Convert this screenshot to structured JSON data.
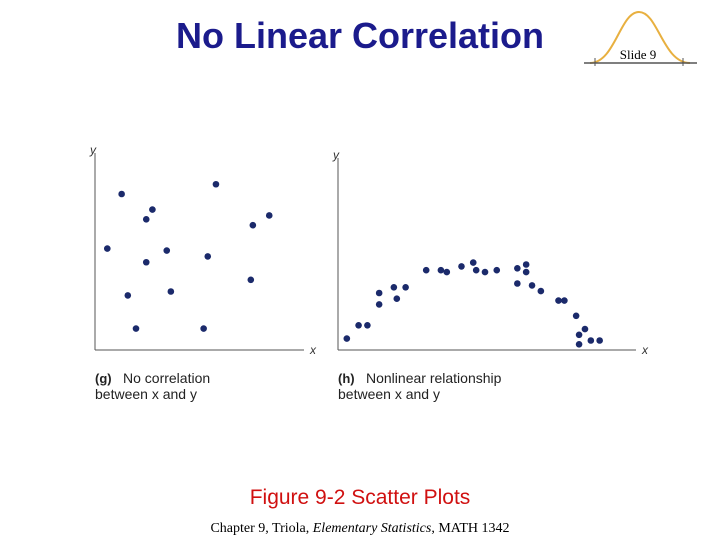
{
  "slide": {
    "title": "No Linear Correlation",
    "slide_number": "Slide 9",
    "figure_caption": "Figure 9-2   Scatter Plots",
    "footer": [
      "Chapter 9, Triola, ",
      "Elementary Statistics",
      ", MATH 1342"
    ]
  },
  "chart_data": [
    {
      "type": "scatter",
      "caption_label": "(g)",
      "caption_lines": [
        "No correlation",
        "between x and y"
      ],
      "xlabel": "x",
      "ylabel": "y",
      "color": "#1b2a6b",
      "xlim": [
        0,
        10
      ],
      "ylim": [
        0,
        10
      ],
      "x": [
        1.3,
        5.9,
        2.8,
        2.5,
        8.5,
        7.7,
        0.6,
        3.5,
        2.5,
        5.5,
        1.6,
        3.7,
        7.6,
        2.0,
        5.3
      ],
      "values": [
        8.0,
        8.5,
        7.2,
        6.7,
        6.9,
        6.4,
        5.2,
        5.1,
        4.5,
        4.8,
        2.8,
        3.0,
        3.6,
        1.1,
        1.1
      ]
    },
    {
      "type": "scatter",
      "caption_label": "(h)",
      "caption_lines": [
        "Nonlinear relationship",
        "between x and y"
      ],
      "xlabel": "x",
      "ylabel": "y",
      "color": "#1b2a6b",
      "xlim": [
        0,
        10
      ],
      "ylim": [
        0,
        10
      ],
      "x": [
        0.3,
        0.7,
        1.0,
        1.4,
        1.4,
        1.9,
        2.0,
        2.3,
        3.0,
        3.5,
        3.7,
        4.2,
        4.6,
        4.7,
        5.0,
        5.4,
        6.1,
        6.4,
        6.4,
        6.1,
        6.6,
        6.9,
        7.5,
        7.7,
        8.1,
        8.2,
        8.4,
        8.6,
        8.2,
        8.9
      ],
      "values": [
        0.6,
        1.3,
        1.3,
        3.0,
        2.4,
        3.3,
        2.7,
        3.3,
        4.2,
        4.2,
        4.1,
        4.4,
        4.6,
        4.2,
        4.1,
        4.2,
        4.3,
        4.5,
        4.1,
        3.5,
        3.4,
        3.1,
        2.6,
        2.6,
        1.8,
        0.8,
        1.1,
        0.5,
        0.3,
        0.5
      ]
    }
  ]
}
